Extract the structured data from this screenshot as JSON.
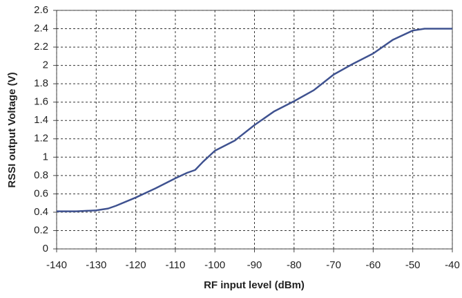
{
  "chart_data": {
    "type": "line",
    "xlabel": "RF input level (dBm)",
    "ylabel": "RSSI output Voltage (V)",
    "x": [
      -140,
      -135,
      -130,
      -127,
      -125,
      -120,
      -115,
      -110,
      -107,
      -105,
      -103,
      -100,
      -95,
      -90,
      -85,
      -80,
      -75,
      -70,
      -65,
      -60,
      -55,
      -50,
      -47,
      -40
    ],
    "values": [
      0.41,
      0.41,
      0.42,
      0.44,
      0.47,
      0.56,
      0.66,
      0.77,
      0.83,
      0.86,
      0.95,
      1.07,
      1.18,
      1.35,
      1.5,
      1.61,
      1.73,
      1.9,
      2.02,
      2.13,
      2.28,
      2.38,
      2.4,
      2.4
    ],
    "color": "#3f5290",
    "xlim": [
      -140,
      -40
    ],
    "xticks": [
      -140,
      -130,
      -120,
      -110,
      -100,
      -90,
      -80,
      -70,
      -60,
      -50,
      -40
    ],
    "ylim": [
      0,
      2.6
    ],
    "yticks": [
      0,
      0.2,
      0.4,
      0.6,
      0.8,
      1,
      1.2,
      1.4,
      1.6,
      1.8,
      2,
      2.2,
      2.4,
      2.6
    ],
    "grid": true
  }
}
